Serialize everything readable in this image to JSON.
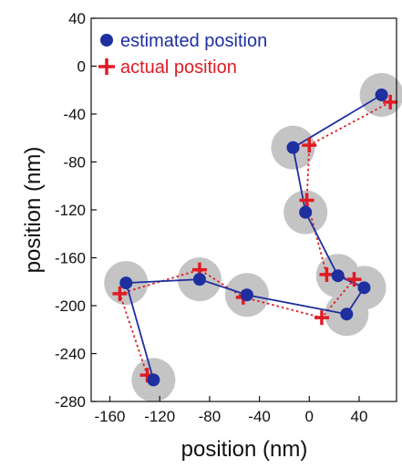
{
  "chart_data": {
    "type": "scatter",
    "title": "",
    "xlabel": "position (nm)",
    "ylabel": "position (nm)",
    "xlim": [
      -175,
      70
    ],
    "ylim": [
      -280,
      40
    ],
    "xticks": [
      "-160",
      "-120",
      "-80",
      "-40",
      "0",
      "40"
    ],
    "xtick_values": [
      -160,
      -120,
      -80,
      -40,
      0,
      40
    ],
    "yticks": [
      "40",
      "0",
      "-40",
      "-80",
      "-120",
      "-160",
      "-200",
      "-240",
      "-280"
    ],
    "ytick_values": [
      40,
      0,
      -40,
      -80,
      -120,
      -160,
      -200,
      -240,
      -280
    ],
    "grid": false,
    "legend_position": "top-left",
    "series": [
      {
        "name": "estimated position",
        "color": "#1e2fa0",
        "marker": "circle",
        "line": "solid",
        "points": [
          {
            "x": 58,
            "y": -24
          },
          {
            "x": -13,
            "y": -68
          },
          {
            "x": -3,
            "y": -122
          },
          {
            "x": 23,
            "y": -175
          },
          {
            "x": 44,
            "y": -185
          },
          {
            "x": 30,
            "y": -207
          },
          {
            "x": -50,
            "y": -191
          },
          {
            "x": -88,
            "y": -178
          },
          {
            "x": -147,
            "y": -181
          },
          {
            "x": -125,
            "y": -262
          }
        ]
      },
      {
        "name": "actual position",
        "color": "#e01b24",
        "marker": "plus",
        "line": "dotted",
        "points": [
          {
            "x": 65,
            "y": -30
          },
          {
            "x": 0,
            "y": -66
          },
          {
            "x": -2,
            "y": -112
          },
          {
            "x": 14,
            "y": -174
          },
          {
            "x": 36,
            "y": -178
          },
          {
            "x": 10,
            "y": -210
          },
          {
            "x": -53,
            "y": -193
          },
          {
            "x": -88,
            "y": -170
          },
          {
            "x": -152,
            "y": -190
          },
          {
            "x": -130,
            "y": -258
          }
        ]
      }
    ],
    "uncertainty_disk_color": "#c4c4c4"
  }
}
